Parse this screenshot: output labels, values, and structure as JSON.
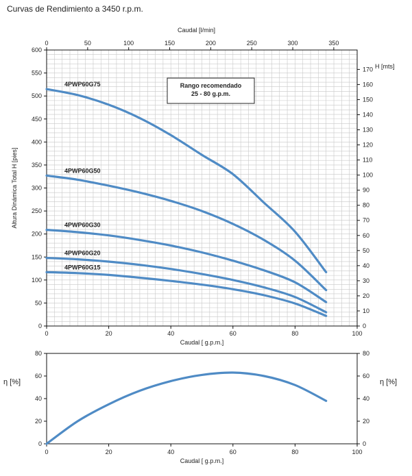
{
  "page": {
    "title": "Curvas de Rendimiento a 3450 r.p.m."
  },
  "chart_data": [
    {
      "type": "line",
      "name_id": "head",
      "xlabel": "Caudal [ g.p.m.]",
      "ylabel": "Altura Dinámica Total H [pies]",
      "xlim": [
        0,
        100
      ],
      "ylim": [
        0,
        600
      ],
      "xticks": [
        0,
        20,
        40,
        60,
        80,
        100
      ],
      "yticks": [
        0,
        50,
        100,
        150,
        200,
        250,
        300,
        350,
        400,
        450,
        500,
        550,
        600
      ],
      "x2label": "Caudal [l/min]",
      "x2ticks": [
        0,
        50,
        100,
        150,
        200,
        250,
        300,
        350
      ],
      "x2_per_x": 3.785,
      "y2label": "H [mts]",
      "y2ticks": [
        0,
        10,
        20,
        30,
        40,
        50,
        60,
        70,
        80,
        90,
        100,
        110,
        120,
        130,
        140,
        150,
        160,
        170
      ],
      "y2_per_y": 0.3048,
      "grid": true,
      "annotation": {
        "line1": "Rango recomendado",
        "line2": "25 - 80 g.p.m."
      },
      "series": [
        {
          "name": "4PWP60G75",
          "x": [
            0,
            10,
            20,
            30,
            40,
            50,
            60,
            70,
            80,
            90
          ],
          "y": [
            515,
            502,
            481,
            452,
            415,
            372,
            330,
            268,
            205,
            117
          ]
        },
        {
          "name": "4PWP60G50",
          "x": [
            0,
            10,
            20,
            30,
            40,
            50,
            60,
            70,
            80,
            90
          ],
          "y": [
            327,
            318,
            305,
            290,
            272,
            250,
            222,
            187,
            142,
            78
          ]
        },
        {
          "name": "4PWP60G30",
          "x": [
            0,
            10,
            20,
            30,
            40,
            50,
            60,
            70,
            80,
            90
          ],
          "y": [
            209,
            204,
            197,
            187,
            175,
            160,
            142,
            121,
            95,
            52
          ]
        },
        {
          "name": "4PWP60G20",
          "x": [
            0,
            10,
            20,
            30,
            40,
            50,
            60,
            70,
            80,
            90
          ],
          "y": [
            148,
            145,
            140,
            133,
            124,
            113,
            100,
            84,
            63,
            30
          ]
        },
        {
          "name": "4PWP60G15",
          "x": [
            0,
            10,
            20,
            30,
            40,
            50,
            60,
            70,
            80,
            90
          ],
          "y": [
            117,
            115,
            111,
            105,
            98,
            90,
            80,
            67,
            49,
            22
          ]
        }
      ]
    },
    {
      "type": "line",
      "name_id": "efficiency",
      "xlabel": "Caudal [ g.p.m.]",
      "ylabel": "η [%]",
      "y2label": "η [%]",
      "xlim": [
        0,
        100
      ],
      "ylim": [
        0,
        80
      ],
      "xticks": [
        0,
        20,
        40,
        60,
        80,
        100
      ],
      "yticks": [
        0,
        20,
        40,
        60,
        80
      ],
      "grid": false,
      "series": [
        {
          "x": [
            0,
            10,
            20,
            30,
            40,
            50,
            60,
            70,
            80,
            90
          ],
          "y": [
            0,
            20,
            35,
            47,
            55.5,
            61,
            63,
            60,
            52,
            38
          ]
        }
      ]
    }
  ]
}
